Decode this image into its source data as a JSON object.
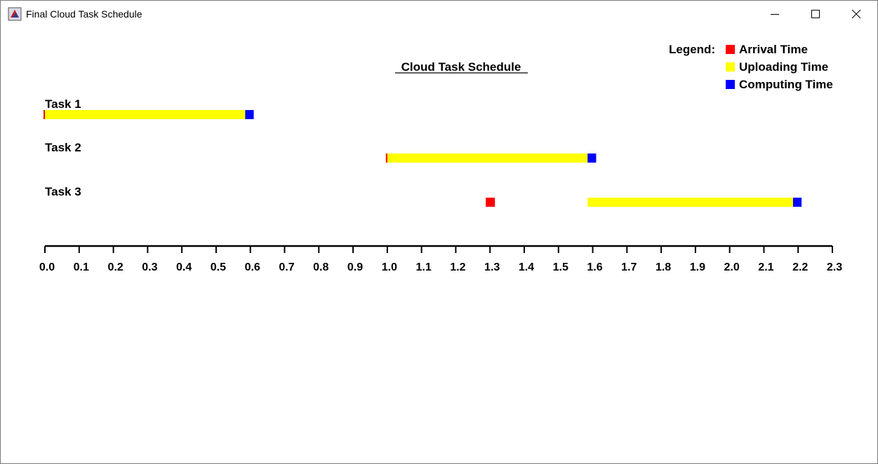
{
  "window": {
    "title": "Final Cloud Task Schedule",
    "controls": {
      "minimize_icon": "minimize-icon",
      "maximize_icon": "maximize-icon",
      "close_icon": "close-icon"
    }
  },
  "legend": {
    "label": "Legend:",
    "items": [
      {
        "label": "Arrival Time",
        "color": "#ff0000"
      },
      {
        "label": "Uploading Time",
        "color": "#ffff00"
      },
      {
        "label": "Computing Time",
        "color": "#0000ff"
      }
    ]
  },
  "chart_data": {
    "type": "bar",
    "title": "Cloud Task Schedule",
    "xlim": [
      0.0,
      2.3
    ],
    "ticks": [
      "0.0",
      "0.1",
      "0.2",
      "0.3",
      "0.4",
      "0.5",
      "0.6",
      "0.7",
      "0.8",
      "0.9",
      "1.0",
      "1.1",
      "1.2",
      "1.3",
      "1.4",
      "1.5",
      "1.6",
      "1.7",
      "1.8",
      "1.9",
      "2.0",
      "2.1",
      "2.2",
      "2.3"
    ],
    "tasks": [
      {
        "name": "Task 1",
        "arrival": 0.0,
        "upload_start": 0.0,
        "upload_end": 0.585,
        "compute_end": 0.61
      },
      {
        "name": "Task 2",
        "arrival": 1.0,
        "upload_start": 1.0,
        "upload_end": 1.585,
        "compute_end": 1.61
      },
      {
        "name": "Task 3",
        "arrival": 1.3,
        "upload_start": 1.585,
        "upload_end": 2.185,
        "compute_end": 2.21
      }
    ],
    "colors": {
      "arrival": "#ff0000",
      "upload": "#ffff00",
      "compute": "#0000ff"
    }
  }
}
